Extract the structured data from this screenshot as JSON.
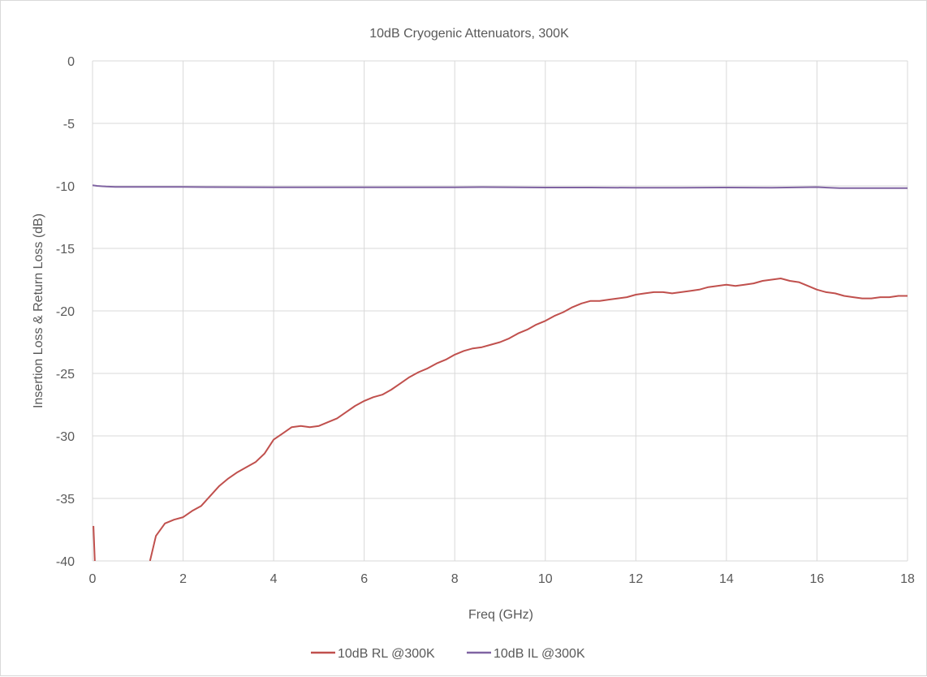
{
  "chart_data": {
    "type": "line",
    "title": "10dB Cryogenic Attenuators, 300K",
    "xlabel": "Freq (GHz)",
    "ylabel": "Insertion Loss & Return Loss (dB)",
    "xlim": [
      0,
      18
    ],
    "ylim": [
      -40,
      0
    ],
    "x_ticks": [
      "0",
      "2",
      "4",
      "6",
      "8",
      "10",
      "12",
      "14",
      "16",
      "18"
    ],
    "y_ticks": [
      "0",
      "-5",
      "-10",
      "-15",
      "-20",
      "-25",
      "-30",
      "-35",
      "-40"
    ],
    "grid": true,
    "legend_position": "bottom",
    "series": [
      {
        "name": "10dB RL @300K",
        "color": "#c0504d",
        "points": [
          [
            0.02,
            -37.2
          ],
          [
            0.05,
            -40.0
          ],
          [
            1.27,
            -40.0
          ],
          [
            1.4,
            -38.0
          ],
          [
            1.6,
            -37.0
          ],
          [
            1.8,
            -36.7
          ],
          [
            2.0,
            -36.5
          ],
          [
            2.2,
            -36.0
          ],
          [
            2.4,
            -35.6
          ],
          [
            2.6,
            -34.8
          ],
          [
            2.8,
            -34.0
          ],
          [
            3.0,
            -33.4
          ],
          [
            3.2,
            -32.9
          ],
          [
            3.4,
            -32.5
          ],
          [
            3.6,
            -32.1
          ],
          [
            3.8,
            -31.4
          ],
          [
            4.0,
            -30.3
          ],
          [
            4.2,
            -29.8
          ],
          [
            4.4,
            -29.3
          ],
          [
            4.6,
            -29.2
          ],
          [
            4.8,
            -29.3
          ],
          [
            5.0,
            -29.2
          ],
          [
            5.2,
            -28.9
          ],
          [
            5.4,
            -28.6
          ],
          [
            5.6,
            -28.1
          ],
          [
            5.8,
            -27.6
          ],
          [
            6.0,
            -27.2
          ],
          [
            6.2,
            -26.9
          ],
          [
            6.4,
            -26.7
          ],
          [
            6.6,
            -26.3
          ],
          [
            6.8,
            -25.8
          ],
          [
            7.0,
            -25.3
          ],
          [
            7.2,
            -24.9
          ],
          [
            7.4,
            -24.6
          ],
          [
            7.6,
            -24.2
          ],
          [
            7.8,
            -23.9
          ],
          [
            8.0,
            -23.5
          ],
          [
            8.2,
            -23.2
          ],
          [
            8.4,
            -23.0
          ],
          [
            8.6,
            -22.9
          ],
          [
            8.8,
            -22.7
          ],
          [
            9.0,
            -22.5
          ],
          [
            9.2,
            -22.2
          ],
          [
            9.4,
            -21.8
          ],
          [
            9.6,
            -21.5
          ],
          [
            9.8,
            -21.1
          ],
          [
            10.0,
            -20.8
          ],
          [
            10.2,
            -20.4
          ],
          [
            10.4,
            -20.1
          ],
          [
            10.6,
            -19.7
          ],
          [
            10.8,
            -19.4
          ],
          [
            11.0,
            -19.2
          ],
          [
            11.2,
            -19.2
          ],
          [
            11.4,
            -19.1
          ],
          [
            11.6,
            -19.0
          ],
          [
            11.8,
            -18.9
          ],
          [
            12.0,
            -18.7
          ],
          [
            12.2,
            -18.6
          ],
          [
            12.4,
            -18.5
          ],
          [
            12.6,
            -18.5
          ],
          [
            12.8,
            -18.6
          ],
          [
            13.0,
            -18.5
          ],
          [
            13.2,
            -18.4
          ],
          [
            13.4,
            -18.3
          ],
          [
            13.6,
            -18.1
          ],
          [
            13.8,
            -18.0
          ],
          [
            14.0,
            -17.9
          ],
          [
            14.2,
            -18.0
          ],
          [
            14.4,
            -17.9
          ],
          [
            14.6,
            -17.8
          ],
          [
            14.8,
            -17.6
          ],
          [
            15.0,
            -17.5
          ],
          [
            15.2,
            -17.4
          ],
          [
            15.4,
            -17.6
          ],
          [
            15.6,
            -17.7
          ],
          [
            15.8,
            -18.0
          ],
          [
            16.0,
            -18.3
          ],
          [
            16.2,
            -18.5
          ],
          [
            16.4,
            -18.6
          ],
          [
            16.6,
            -18.8
          ],
          [
            16.8,
            -18.9
          ],
          [
            17.0,
            -19.0
          ],
          [
            17.2,
            -19.0
          ],
          [
            17.4,
            -18.9
          ],
          [
            17.6,
            -18.9
          ],
          [
            17.8,
            -18.8
          ],
          [
            18.0,
            -18.8
          ]
        ]
      },
      {
        "name": "10dB IL @300K",
        "color": "#8064a2",
        "points": [
          [
            0.0,
            -9.95
          ],
          [
            0.1,
            -10.0
          ],
          [
            0.3,
            -10.05
          ],
          [
            0.5,
            -10.08
          ],
          [
            1.0,
            -10.08
          ],
          [
            2.0,
            -10.08
          ],
          [
            2.6,
            -10.1
          ],
          [
            4.0,
            -10.12
          ],
          [
            6.0,
            -10.12
          ],
          [
            8.0,
            -10.12
          ],
          [
            8.6,
            -10.1
          ],
          [
            10.0,
            -10.13
          ],
          [
            11.0,
            -10.13
          ],
          [
            12.0,
            -10.15
          ],
          [
            13.0,
            -10.15
          ],
          [
            14.0,
            -10.13
          ],
          [
            15.0,
            -10.15
          ],
          [
            16.0,
            -10.1
          ],
          [
            16.5,
            -10.18
          ],
          [
            17.0,
            -10.18
          ],
          [
            18.0,
            -10.18
          ]
        ]
      }
    ]
  }
}
